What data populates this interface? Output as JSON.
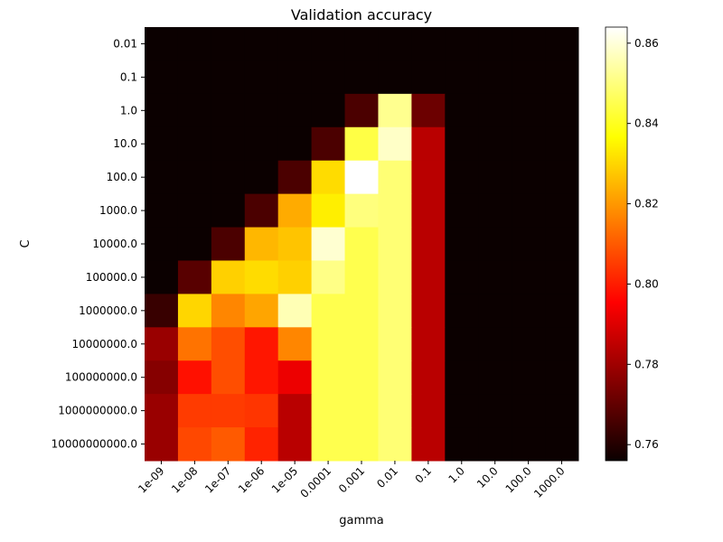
{
  "chart_data": {
    "type": "heatmap",
    "title": "Validation accuracy",
    "xlabel": "gamma",
    "ylabel": "C",
    "x_categories": [
      "1e-09",
      "1e-08",
      "1e-07",
      "1e-06",
      "1e-05",
      "0.0001",
      "0.001",
      "0.01",
      "0.1",
      "1.0",
      "10.0",
      "100.0",
      "1000.0"
    ],
    "y_categories": [
      "0.01",
      "0.1",
      "1.0",
      "10.0",
      "100.0",
      "1000.0",
      "10000.0",
      "100000.0",
      "1000000.0",
      "10000000.0",
      "100000000.0",
      "1000000000.0",
      "10000000000.0"
    ],
    "values": [
      [
        0.756,
        0.756,
        0.756,
        0.756,
        0.756,
        0.756,
        0.756,
        0.756,
        0.756,
        0.756,
        0.756,
        0.756,
        0.756
      ],
      [
        0.756,
        0.756,
        0.756,
        0.756,
        0.756,
        0.756,
        0.756,
        0.756,
        0.756,
        0.756,
        0.756,
        0.756,
        0.756
      ],
      [
        0.756,
        0.756,
        0.756,
        0.756,
        0.756,
        0.756,
        0.766,
        0.852,
        0.771,
        0.756,
        0.756,
        0.756,
        0.756
      ],
      [
        0.756,
        0.756,
        0.756,
        0.756,
        0.756,
        0.766,
        0.844,
        0.858,
        0.783,
        0.756,
        0.756,
        0.756,
        0.756
      ],
      [
        0.756,
        0.756,
        0.756,
        0.756,
        0.766,
        0.831,
        0.864,
        0.849,
        0.783,
        0.756,
        0.756,
        0.756,
        0.756
      ],
      [
        0.756,
        0.756,
        0.756,
        0.766,
        0.823,
        0.834,
        0.85,
        0.849,
        0.783,
        0.756,
        0.756,
        0.756,
        0.756
      ],
      [
        0.756,
        0.756,
        0.766,
        0.825,
        0.827,
        0.859,
        0.845,
        0.849,
        0.783,
        0.756,
        0.756,
        0.756,
        0.756
      ],
      [
        0.756,
        0.768,
        0.829,
        0.831,
        0.829,
        0.851,
        0.845,
        0.849,
        0.783,
        0.756,
        0.756,
        0.756,
        0.756
      ],
      [
        0.763,
        0.83,
        0.817,
        0.822,
        0.856,
        0.845,
        0.845,
        0.849,
        0.783,
        0.756,
        0.756,
        0.756,
        0.756
      ],
      [
        0.778,
        0.814,
        0.808,
        0.799,
        0.817,
        0.845,
        0.845,
        0.849,
        0.783,
        0.756,
        0.756,
        0.756,
        0.756
      ],
      [
        0.775,
        0.798,
        0.808,
        0.799,
        0.791,
        0.845,
        0.845,
        0.849,
        0.783,
        0.756,
        0.756,
        0.756,
        0.756
      ],
      [
        0.778,
        0.805,
        0.805,
        0.804,
        0.783,
        0.845,
        0.845,
        0.849,
        0.783,
        0.756,
        0.756,
        0.756,
        0.756
      ],
      [
        0.778,
        0.807,
        0.81,
        0.801,
        0.783,
        0.845,
        0.845,
        0.849,
        0.783,
        0.756,
        0.756,
        0.756,
        0.756
      ]
    ],
    "vmin": 0.756,
    "vmax": 0.864,
    "colormap": "hot",
    "colorbar_ticks": [
      "0.76",
      "0.78",
      "0.80",
      "0.82",
      "0.84",
      "0.86"
    ],
    "grid": false
  }
}
